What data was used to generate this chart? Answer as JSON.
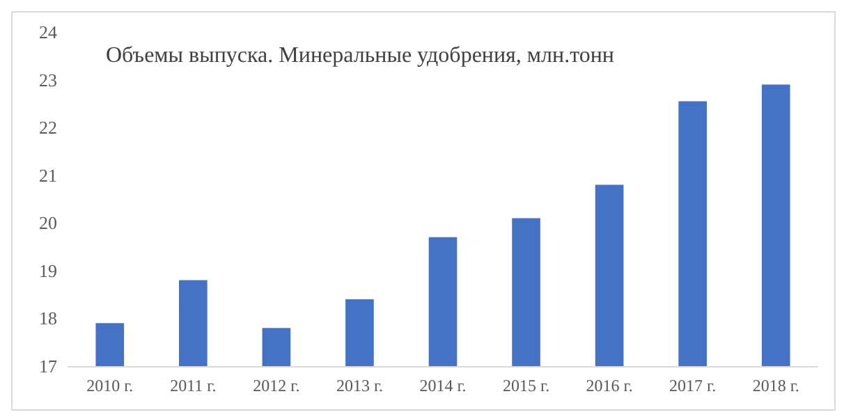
{
  "chart_data": {
    "type": "bar",
    "title": "Объемы выпуска. Минеральные удобрения, млн.тонн",
    "categories": [
      "2010 г.",
      "2011 г.",
      "2012 г.",
      "2013 г.",
      "2014 г.",
      "2015 г.",
      "2016 г.",
      "2017 г.",
      "2018 г."
    ],
    "values": [
      17.9,
      18.8,
      17.8,
      18.4,
      19.7,
      20.1,
      20.8,
      22.55,
      22.9
    ],
    "color": "#4472c4",
    "ylim": [
      17,
      24
    ],
    "yticks": [
      17,
      18,
      19,
      20,
      21,
      22,
      23,
      24
    ]
  }
}
